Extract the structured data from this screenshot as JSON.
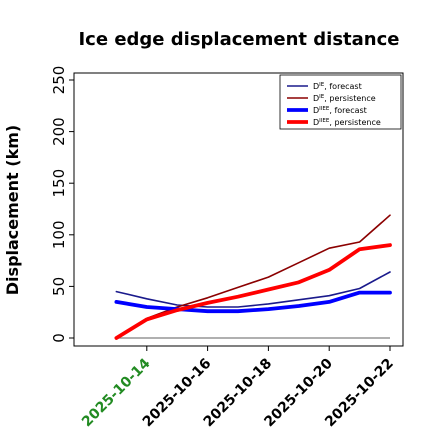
{
  "chart_data": {
    "type": "line",
    "title": "Ice edge displacement distance",
    "xlabel": "",
    "ylabel": "Displacement (km)",
    "x": [
      "2025-10-13",
      "2025-10-14",
      "2025-10-15",
      "2025-10-16",
      "2025-10-17",
      "2025-10-18",
      "2025-10-19",
      "2025-10-20",
      "2025-10-21",
      "2025-10-22"
    ],
    "x_ticks": [
      "2025-10-14",
      "2025-10-16",
      "2025-10-18",
      "2025-10-20",
      "2025-10-22"
    ],
    "highlighted_tick": "2025-10-14",
    "xlim": [
      "2025-10-12",
      "2025-10-22"
    ],
    "ylim": [
      0,
      255
    ],
    "y_ticks": [
      0,
      50,
      100,
      150,
      200,
      250
    ],
    "grid": false,
    "legend_position": "top-right",
    "series": [
      {
        "name": "D^IE, forecast",
        "label_main": "D",
        "label_sup": "IE",
        "label_rest": ", forecast",
        "color": "#1a1a8c",
        "style": "thin",
        "values": [
          45,
          38,
          32,
          30,
          30,
          33,
          37,
          41,
          48,
          64
        ]
      },
      {
        "name": "D^IE, persistence",
        "label_main": "D",
        "label_sup": "IE",
        "label_rest": ", persistence",
        "color": "#8b0000",
        "style": "thin",
        "values": [
          0,
          19,
          30,
          39,
          49,
          59,
          73,
          87,
          93,
          119
        ]
      },
      {
        "name": "D^IIEE, forecast",
        "label_main": "D",
        "label_sup": "IIEE",
        "label_rest": ", forecast",
        "color": "#0000ff",
        "style": "thick",
        "values": [
          35,
          30,
          28,
          26,
          26,
          28,
          31,
          35,
          44,
          44
        ]
      },
      {
        "name": "D^IIEE, persistence",
        "label_main": "D",
        "label_sup": "IIEE",
        "label_rest": ", persistence",
        "color": "#ff0000",
        "style": "thick",
        "values": [
          0,
          18,
          27,
          34,
          40,
          47,
          54,
          66,
          86,
          90
        ]
      }
    ],
    "zero_line_color": "#808080",
    "highlight_tick_color": "#228b22"
  }
}
